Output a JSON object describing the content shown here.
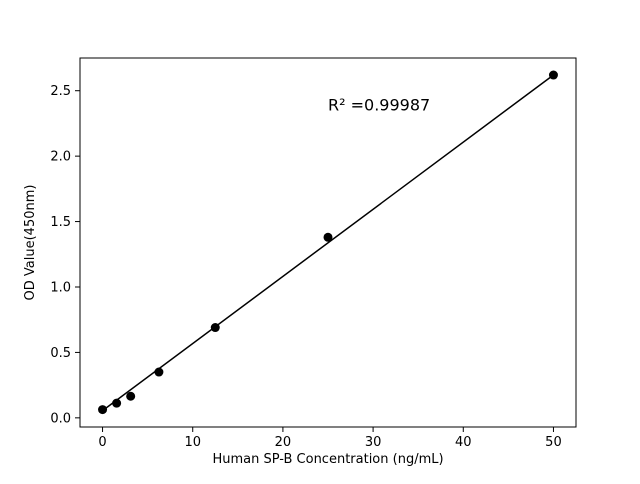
{
  "chart_data": {
    "type": "scatter",
    "title": "",
    "xlabel": "Human SP-B Concentration (ng/mL)",
    "ylabel": "OD Value(450nm)",
    "annotation": "R² =0.99987",
    "annotation_xy": [
      25,
      2.35
    ],
    "x": [
      0,
      1.56,
      3.12,
      6.25,
      12.5,
      25,
      50
    ],
    "y": [
      0.063,
      0.112,
      0.165,
      0.35,
      0.69,
      1.38,
      2.62
    ],
    "fit_line": {
      "x": [
        0,
        50
      ],
      "y": [
        0.055,
        2.62
      ]
    },
    "xlim": [
      -2.5,
      52.5
    ],
    "ylim": [
      -0.07,
      2.75
    ],
    "xticks": [
      0,
      10,
      20,
      30,
      40,
      50
    ],
    "xtick_labels": [
      "0",
      "10",
      "20",
      "30",
      "40",
      "50"
    ],
    "yticks": [
      0.0,
      0.5,
      1.0,
      1.5,
      2.0,
      2.5
    ],
    "ytick_labels": [
      "0.0",
      "0.5",
      "1.0",
      "1.5",
      "2.0",
      "2.5"
    ],
    "grid": false,
    "legend": "none",
    "marker_color": "#000000",
    "line_color": "#000000",
    "background_color": "#ffffff"
  }
}
